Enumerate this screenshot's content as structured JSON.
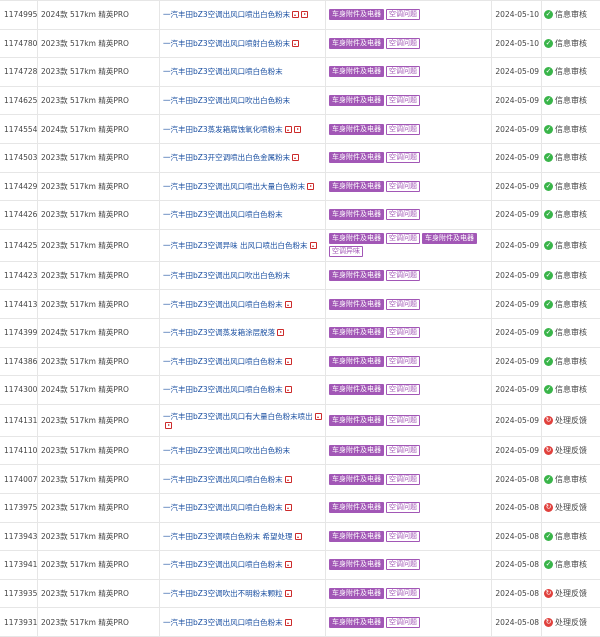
{
  "rows": [
    {
      "id": "1174995",
      "model": "2024款 517km 精英PRO",
      "title": "一汽丰田bZ3空调出风口喷出白色粉末",
      "media": [
        "img",
        "vid"
      ],
      "tags": [
        {
          "text": "车身附件及电器",
          "style": "fill"
        },
        {
          "text": "空调问题",
          "style": "outline"
        }
      ],
      "date": "2024-05-10",
      "status": "信息审核",
      "status_type": "ok"
    },
    {
      "id": "1174780",
      "model": "2023款 517km 精英PRO",
      "title": "一汽丰田bZ3空调出风口喷射白色粉末",
      "media": [
        "img"
      ],
      "tags": [
        {
          "text": "车身附件及电器",
          "style": "fill"
        },
        {
          "text": "空调问题",
          "style": "outline"
        }
      ],
      "date": "2024-05-10",
      "status": "信息审核",
      "status_type": "ok"
    },
    {
      "id": "1174728",
      "model": "2023款 517km 精英PRO",
      "title": "一汽丰田bZ3空调出风口喷白色粉末",
      "media": [],
      "tags": [
        {
          "text": "车身附件及电器",
          "style": "fill"
        },
        {
          "text": "空调问题",
          "style": "outline"
        }
      ],
      "date": "2024-05-09",
      "status": "信息审核",
      "status_type": "ok"
    },
    {
      "id": "1174625",
      "model": "2023款 517km 精英PRO",
      "title": "一汽丰田bZ3空调出风口吹出白色粉末",
      "media": [],
      "tags": [
        {
          "text": "车身附件及电器",
          "style": "fill"
        },
        {
          "text": "空调问题",
          "style": "outline"
        }
      ],
      "date": "2024-05-09",
      "status": "信息审核",
      "status_type": "ok"
    },
    {
      "id": "1174554",
      "model": "2024款 517km 精英PRO",
      "title": "一汽丰田bZ3蒸发箱腐蚀氧化喷粉末",
      "media": [
        "img",
        "vid"
      ],
      "tags": [
        {
          "text": "车身附件及电器",
          "style": "fill"
        },
        {
          "text": "空调问题",
          "style": "outline"
        }
      ],
      "date": "2024-05-09",
      "status": "信息审核",
      "status_type": "ok"
    },
    {
      "id": "1174503",
      "model": "2023款 517km 精英PRO",
      "title": "一汽丰田bZ3开空调喷出白色金属粉末",
      "media": [
        "img"
      ],
      "tags": [
        {
          "text": "车身附件及电器",
          "style": "fill"
        },
        {
          "text": "空调问题",
          "style": "outline"
        }
      ],
      "date": "2024-05-09",
      "status": "信息审核",
      "status_type": "ok"
    },
    {
      "id": "1174429",
      "model": "2023款 517km 精英PRO",
      "title": "一汽丰田bZ3空调出风口喷出大量白色粉末",
      "media": [
        "vid"
      ],
      "tags": [
        {
          "text": "车身附件及电器",
          "style": "fill"
        },
        {
          "text": "空调问题",
          "style": "outline"
        }
      ],
      "date": "2024-05-09",
      "status": "信息审核",
      "status_type": "ok"
    },
    {
      "id": "1174426",
      "model": "2023款 517km 精英PRO",
      "title": "一汽丰田bZ3空调出风口喷白色粉末",
      "media": [],
      "tags": [
        {
          "text": "车身附件及电器",
          "style": "fill"
        },
        {
          "text": "空调问题",
          "style": "outline"
        }
      ],
      "date": "2024-05-09",
      "status": "信息审核",
      "status_type": "ok"
    },
    {
      "id": "1174425",
      "model": "2023款 517km 精英PRO",
      "title": "一汽丰田bZ3空调异味 出风口喷出白色粉末",
      "media": [
        "img"
      ],
      "tags": [
        {
          "text": "车身附件及电器",
          "style": "fill"
        },
        {
          "text": "空调问题",
          "style": "outline"
        },
        {
          "text": "车身附件及电器",
          "style": "fill"
        },
        {
          "text": "空调异味",
          "style": "outline"
        }
      ],
      "date": "2024-05-09",
      "status": "信息审核",
      "status_type": "ok",
      "tall": true
    },
    {
      "id": "1174423",
      "model": "2023款 517km 精英PRO",
      "title": "一汽丰田bZ3空调出风口吹出白色粉末",
      "media": [],
      "tags": [
        {
          "text": "车身附件及电器",
          "style": "fill"
        },
        {
          "text": "空调问题",
          "style": "outline"
        }
      ],
      "date": "2024-05-09",
      "status": "信息审核",
      "status_type": "ok"
    },
    {
      "id": "1174413",
      "model": "2023款 517km 精英PRO",
      "title": "一汽丰田bZ3空调出风口喷白色粉末",
      "media": [
        "img"
      ],
      "tags": [
        {
          "text": "车身附件及电器",
          "style": "fill"
        },
        {
          "text": "空调问题",
          "style": "outline"
        }
      ],
      "date": "2024-05-09",
      "status": "信息审核",
      "status_type": "ok"
    },
    {
      "id": "1174399",
      "model": "2024款 517km 精英PRO",
      "title": "一汽丰田bZ3空调蒸发箱涂层脱落",
      "media": [
        "vid"
      ],
      "tags": [
        {
          "text": "车身附件及电器",
          "style": "fill"
        },
        {
          "text": "空调问题",
          "style": "outline"
        }
      ],
      "date": "2024-05-09",
      "status": "信息审核",
      "status_type": "ok"
    },
    {
      "id": "1174386",
      "model": "2023款 517km 精英PRO",
      "title": "一汽丰田bZ3空调出风口喷白色粉末",
      "media": [
        "img"
      ],
      "tags": [
        {
          "text": "车身附件及电器",
          "style": "fill"
        },
        {
          "text": "空调问题",
          "style": "outline"
        }
      ],
      "date": "2024-05-09",
      "status": "信息审核",
      "status_type": "ok"
    },
    {
      "id": "1174300",
      "model": "2024款 517km 精英PRO",
      "title": "一汽丰田bZ3空调出风口喷白色粉末",
      "media": [
        "img"
      ],
      "tags": [
        {
          "text": "车身附件及电器",
          "style": "fill"
        },
        {
          "text": "空调问题",
          "style": "outline"
        }
      ],
      "date": "2024-05-09",
      "status": "信息审核",
      "status_type": "ok"
    },
    {
      "id": "1174131",
      "model": "2023款 517km 精英PRO",
      "title": "一汽丰田bZ3空调出风口有大量白色粉末喷出",
      "media": [
        "img",
        "vid"
      ],
      "tags": [
        {
          "text": "车身附件及电器",
          "style": "fill"
        },
        {
          "text": "空调问题",
          "style": "outline"
        }
      ],
      "date": "2024-05-09",
      "status": "处理反馈",
      "status_type": "bad",
      "tall": true
    },
    {
      "id": "1174110",
      "model": "2023款 517km 精英PRO",
      "title": "一汽丰田bZ3空调出风口吹出白色粉末",
      "media": [],
      "tags": [
        {
          "text": "车身附件及电器",
          "style": "fill"
        },
        {
          "text": "空调问题",
          "style": "outline"
        }
      ],
      "date": "2024-05-09",
      "status": "处理反馈",
      "status_type": "bad"
    },
    {
      "id": "1174007",
      "model": "2023款 517km 精英PRO",
      "title": "一汽丰田bZ3空调出风口喷白色粉末",
      "media": [
        "img"
      ],
      "tags": [
        {
          "text": "车身附件及电器",
          "style": "fill"
        },
        {
          "text": "空调问题",
          "style": "outline"
        }
      ],
      "date": "2024-05-08",
      "status": "信息审核",
      "status_type": "ok"
    },
    {
      "id": "1173975",
      "model": "2023款 517km 精英PRO",
      "title": "一汽丰田bZ3空调出风口喷白色粉末",
      "media": [
        "img"
      ],
      "tags": [
        {
          "text": "车身附件及电器",
          "style": "fill"
        },
        {
          "text": "空调问题",
          "style": "outline"
        }
      ],
      "date": "2024-05-08",
      "status": "处理反馈",
      "status_type": "bad"
    },
    {
      "id": "1173943",
      "model": "2023款 517km 精英PRO",
      "title": "一汽丰田bZ3空调喷白色粉末 希望处理",
      "media": [
        "img"
      ],
      "tags": [
        {
          "text": "车身附件及电器",
          "style": "fill"
        },
        {
          "text": "空调问题",
          "style": "outline"
        }
      ],
      "date": "2024-05-08",
      "status": "信息审核",
      "status_type": "ok"
    },
    {
      "id": "1173941",
      "model": "2023款 517km 精英PRO",
      "title": "一汽丰田bZ3空调出风口喷白色粉末",
      "media": [
        "img"
      ],
      "tags": [
        {
          "text": "车身附件及电器",
          "style": "fill"
        },
        {
          "text": "空调问题",
          "style": "outline"
        }
      ],
      "date": "2024-05-08",
      "status": "信息审核",
      "status_type": "ok"
    },
    {
      "id": "1173935",
      "model": "2023款 517km 精英PRO",
      "title": "一汽丰田bZ3空调吹出不明粉末颗粒",
      "media": [
        "img"
      ],
      "tags": [
        {
          "text": "车身附件及电器",
          "style": "fill"
        },
        {
          "text": "空调问题",
          "style": "outline"
        }
      ],
      "date": "2024-05-08",
      "status": "处理反馈",
      "status_type": "bad"
    },
    {
      "id": "1173931",
      "model": "2023款 517km 精英PRO",
      "title": "一汽丰田bZ3空调出风口喷白色粉末",
      "media": [
        "img"
      ],
      "tags": [
        {
          "text": "车身附件及电器",
          "style": "fill"
        },
        {
          "text": "空调问题",
          "style": "outline"
        }
      ],
      "date": "2024-05-08",
      "status": "处理反馈",
      "status_type": "bad"
    }
  ],
  "icons": {
    "img": "image-attachment-icon",
    "vid": "video-attachment-icon",
    "ok": "check-circle-icon",
    "bad": "warning-circle-icon"
  },
  "colors": {
    "tag": "#a257b6",
    "link": "#1a4fa1",
    "ok": "#3ab54a",
    "bad": "#e0413d",
    "grid": "#e6e6e6"
  }
}
